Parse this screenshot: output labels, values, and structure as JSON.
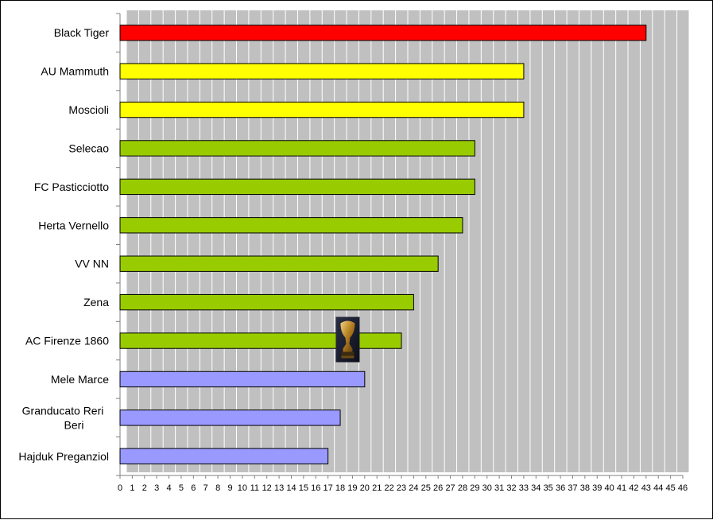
{
  "chart_data": {
    "type": "bar",
    "orientation": "horizontal",
    "title": "",
    "xlabel": "",
    "ylabel": "",
    "xlim": [
      0,
      46
    ],
    "x_ticks": [
      0,
      1,
      2,
      3,
      4,
      5,
      6,
      7,
      8,
      9,
      10,
      11,
      12,
      13,
      14,
      15,
      16,
      17,
      18,
      19,
      20,
      21,
      22,
      23,
      24,
      25,
      26,
      27,
      28,
      29,
      30,
      31,
      32,
      33,
      34,
      35,
      36,
      37,
      38,
      39,
      40,
      41,
      42,
      43,
      44,
      45,
      46
    ],
    "grid": "vertical",
    "plot_background": "#c0c0c0",
    "categories": [
      "Black Tiger",
      "AU Mammuth",
      "Moscioli",
      "Selecao",
      "FC Pasticciotto",
      "Herta Vernello",
      "VV NN",
      "Zena",
      "AC Firenze 1860",
      "Mele Marce",
      "Granducato Reri Beri",
      "Hajduk Preganziol"
    ],
    "values": [
      43,
      33,
      33,
      29,
      29,
      28,
      26,
      24,
      23,
      20,
      18,
      17
    ],
    "colors": [
      "#ff0000",
      "#ffff00",
      "#ffff00",
      "#99cc00",
      "#99cc00",
      "#99cc00",
      "#99cc00",
      "#99cc00",
      "#99cc00",
      "#9999ff",
      "#9999ff",
      "#9999ff"
    ],
    "annotation": {
      "icon": "trophy-icon",
      "category": "AC Firenze 1860",
      "x": 19
    }
  }
}
